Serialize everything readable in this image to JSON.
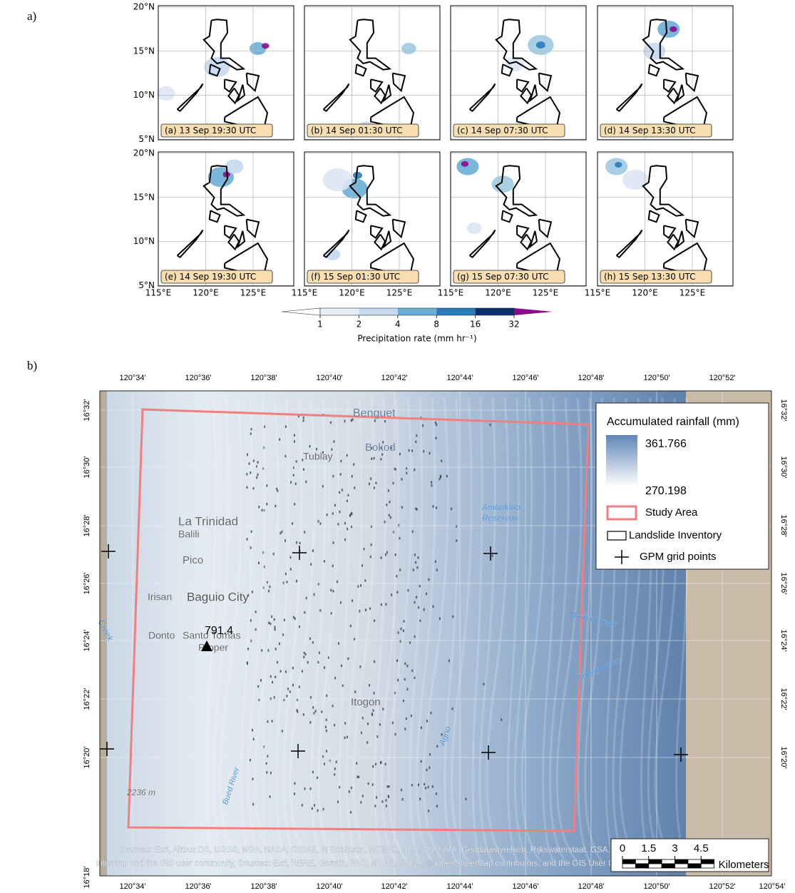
{
  "panel_a": {
    "label": "a)",
    "maps": [
      "(a) 13 Sep 19:30 UTC",
      "(b) 14 Sep 01:30 UTC",
      "(c) 14 Sep 07:30 UTC",
      "(d) 14 Sep 13:30 UTC",
      "(e) 14 Sep 19:30 UTC",
      "(f) 15 Sep 01:30 UTC",
      "(g) 15 Sep 07:30 UTC",
      "(h) 15 Sep 13:30 UTC"
    ],
    "lat_ticks": [
      "20°N",
      "15°N",
      "10°N",
      "5°N"
    ],
    "lon_ticks": [
      "115°E",
      "120°E",
      "125°E"
    ],
    "colorbar": {
      "ticks": [
        1,
        2,
        4,
        8,
        16,
        32
      ],
      "label": "Precipitation rate (mm hr⁻¹)"
    }
  },
  "panel_b": {
    "label": "b)",
    "lon_ticks": [
      "120°34'",
      "120°36'",
      "120°38'",
      "120°40'",
      "120°42'",
      "120°44'",
      "120°46'",
      "120°48'",
      "120°50'",
      "120°52'",
      "120°54'"
    ],
    "lat_ticks": [
      "16°32'",
      "16°30'",
      "16°28'",
      "16°26'",
      "16°24'",
      "16°22'",
      "16°20'",
      "16°18'"
    ],
    "places": [
      "Benguet",
      "Bokod",
      "Tublay",
      "Ambuklao",
      "Reservoir",
      "La Trinidad",
      "Balili",
      "Pico",
      "Irisan",
      "Baguio City",
      "Donto",
      "Santo Tomas",
      "Proper",
      "Itogon",
      "Agno",
      "Daing Creek",
      "Bued River",
      "Creek",
      "Tineng River",
      "2236 m"
    ],
    "elevation": 791.4,
    "legend": {
      "title": "Accumulated rainfall (mm)",
      "max": 361.766,
      "min": 270.198,
      "items": [
        "Study Area",
        "Landslide Inventory",
        "GPM grid points"
      ]
    },
    "scale": {
      "ticks": [
        0,
        1.5,
        3,
        4.5
      ],
      "unit": "Kilometers"
    },
    "sources": [
      "Sources: Esri, Airbus DS, USGS, NGA, NASA, CGIAR, N Robinson, NCEAS, NLS, OS, NMA, Geodatastyrelsen, Rijkswaterstaat, GSA, Geoland,",
      "Intermap and the GIS user community, Sources: Esri, HERE, Garmin, FAO, NOAA, USGS, © OpenStreetMap contributors, and the GIS User Community"
    ]
  }
}
